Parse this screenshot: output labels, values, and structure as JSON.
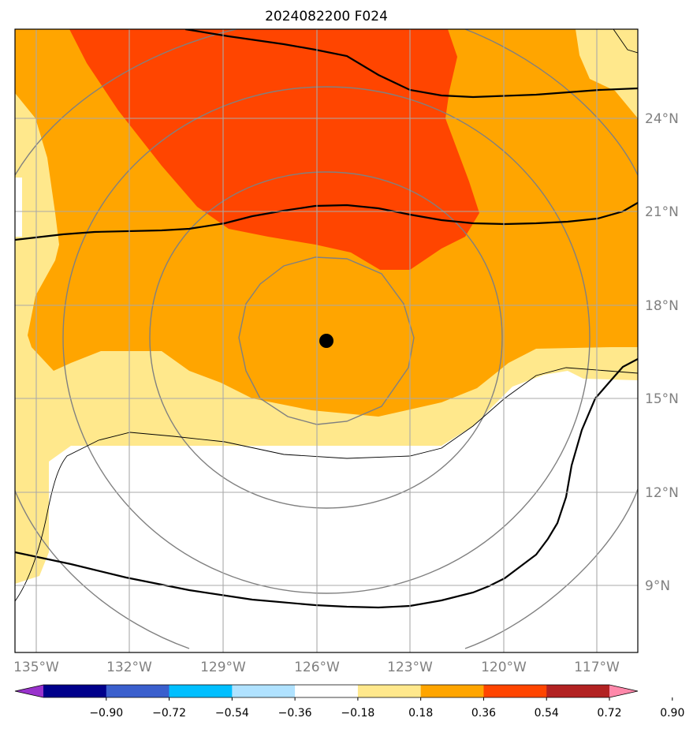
{
  "title": "2024082200 F024",
  "lon_labels": [
    "135°W",
    "132°W",
    "129°W",
    "126°W",
    "123°W",
    "120°W",
    "117°W"
  ],
  "lat_labels": [
    "24°N",
    "21°N",
    "18°N",
    "15°N",
    "12°N",
    "9°N"
  ],
  "colorbar": {
    "ticks": [
      "−0.90",
      "−0.72",
      "−0.54",
      "−0.36",
      "−0.18",
      "0.18",
      "0.36",
      "0.54",
      "0.72",
      "0.90"
    ],
    "colors": [
      "#9932cc",
      "#00008b",
      "#3a5fcd",
      "#00bfff",
      "#b0e2ff",
      "#ffffff",
      "#ffe88c",
      "#ffa500",
      "#ff4500",
      "#b22222",
      "#ff88aa"
    ],
    "extend": "both"
  },
  "map": {
    "lon_range": [
      -135.5,
      -115.5
    ],
    "lat_range": [
      6.2,
      26.2
    ],
    "center_marker": {
      "lon": -125.7,
      "lat": 16.8
    },
    "fill_levels": {
      "light": "#ffe88c",
      "orange": "#ffa500",
      "red": "#ff4500"
    },
    "grid": true
  }
}
